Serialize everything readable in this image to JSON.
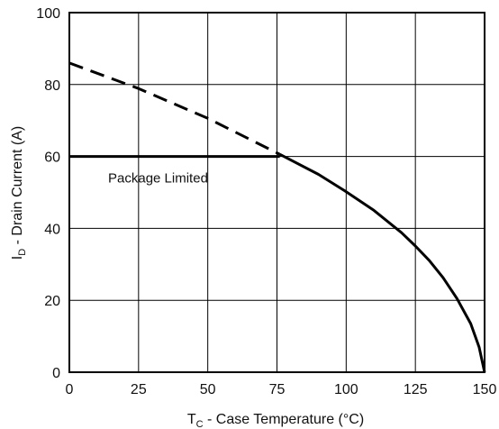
{
  "chart_data": {
    "type": "line",
    "xlabel_main": "T",
    "xlabel_sub": "C",
    "xlabel_rest": " - Case Temperature (°C)",
    "ylabel_main": "I",
    "ylabel_sub": "D",
    "ylabel_rest": " - Drain Current (A)",
    "xlim": [
      0,
      150
    ],
    "ylim": [
      0,
      100
    ],
    "x_ticks": [
      0,
      25,
      50,
      75,
      100,
      125,
      150
    ],
    "y_ticks": [
      0,
      20,
      40,
      60,
      80,
      100
    ],
    "grid": true,
    "series": [
      {
        "style": "dashed",
        "color": "#000000",
        "x": [
          0,
          25,
          50,
          76
        ],
        "y": [
          86,
          78.9,
          70.6,
          60.6
        ]
      },
      {
        "style": "solid",
        "color": "#000000",
        "x": [
          0,
          76
        ],
        "y": [
          60,
          60
        ]
      },
      {
        "style": "solid",
        "color": "#000000",
        "x": [
          76,
          90,
          100,
          110,
          120,
          125,
          130,
          135,
          140,
          145,
          148,
          150
        ],
        "y": [
          60.6,
          55,
          50.2,
          45,
          38.8,
          35.1,
          31.1,
          26.3,
          20.5,
          13.5,
          7,
          0
        ]
      }
    ],
    "annotations": [
      {
        "text": "Package Limited",
        "x": 14,
        "y": 54
      }
    ]
  }
}
